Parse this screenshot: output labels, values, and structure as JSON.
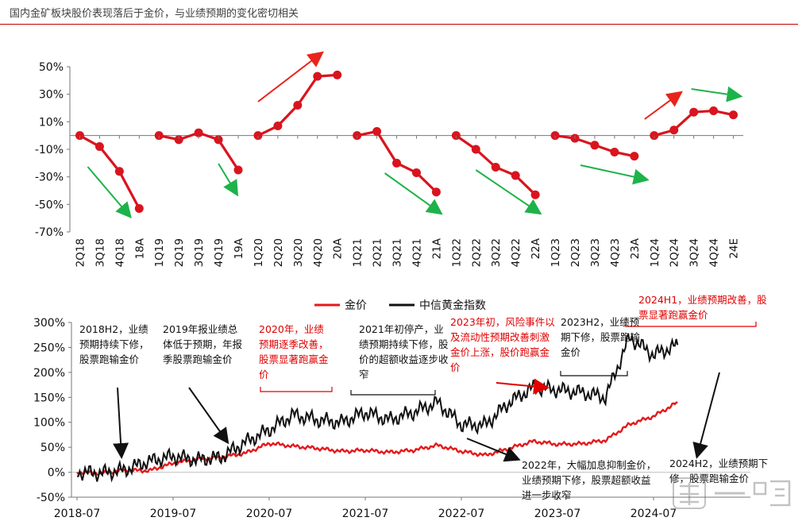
{
  "title": "国内金矿板块股价表现落后于金价，与业绩预期的变化密切相关",
  "colors": {
    "series": "#d9141e",
    "gold_line": "#e31a1c",
    "index_line": "#111111",
    "up_arrow": "#e8241c",
    "down_arrow": "#1db34a",
    "title_rule": "#c00000"
  },
  "chart_data": [
    {
      "type": "line",
      "title": "",
      "ylim": [
        -70,
        50
      ],
      "yticks": [
        "50%",
        "30%",
        "10%",
        "-10%",
        "-30%",
        "-50%",
        "-70%"
      ],
      "categories": [
        "2Q18",
        "3Q18",
        "4Q18",
        "18A",
        "1Q19",
        "2Q19",
        "3Q19",
        "4Q19",
        "19A",
        "1Q20",
        "2Q20",
        "3Q20",
        "4Q20",
        "20A",
        "1Q21",
        "2Q21",
        "3Q21",
        "4Q21",
        "21A",
        "1Q22",
        "2Q22",
        "3Q22",
        "4Q22",
        "22A",
        "1Q23",
        "2Q23",
        "3Q23",
        "4Q23",
        "23A",
        "1Q24",
        "2Q24",
        "3Q24",
        "4Q24",
        "24E"
      ],
      "segments": [
        {
          "year": "2018",
          "x": [
            "2Q18",
            "3Q18",
            "4Q18",
            "18A"
          ],
          "values": [
            0,
            -8,
            -26,
            -53
          ],
          "trend": "down"
        },
        {
          "year": "2019",
          "x": [
            "1Q19",
            "2Q19",
            "3Q19",
            "4Q19",
            "19A"
          ],
          "values": [
            0,
            -3,
            2,
            -3,
            -25
          ],
          "trend": "down"
        },
        {
          "year": "2020",
          "x": [
            "1Q20",
            "2Q20",
            "3Q20",
            "4Q20",
            "20A"
          ],
          "values": [
            0,
            7,
            22,
            43,
            44
          ],
          "trend": "up"
        },
        {
          "year": "2021",
          "x": [
            "1Q21",
            "2Q21",
            "3Q21",
            "4Q21",
            "21A"
          ],
          "values": [
            0,
            3,
            -20,
            -27,
            -41
          ],
          "trend": "down"
        },
        {
          "year": "2022",
          "x": [
            "1Q22",
            "2Q22",
            "3Q22",
            "4Q22",
            "22A"
          ],
          "values": [
            0,
            -10,
            -23,
            -29,
            -43
          ],
          "trend": "down"
        },
        {
          "year": "2023",
          "x": [
            "1Q23",
            "2Q23",
            "3Q23",
            "4Q23",
            "23A"
          ],
          "values": [
            0,
            -2,
            -7,
            -12,
            -15
          ],
          "trend": "down"
        },
        {
          "year": "2024",
          "x": [
            "1Q24",
            "2Q24",
            "3Q24",
            "4Q24",
            "24E"
          ],
          "values": [
            0,
            4,
            17,
            18,
            15
          ],
          "trend": "up_then_down"
        }
      ]
    },
    {
      "type": "line",
      "title": "",
      "legend": [
        "金价",
        "中信黄金指数"
      ],
      "legend_position": "top",
      "ylim": [
        -50,
        300
      ],
      "yticks": [
        "300%",
        "250%",
        "200%",
        "150%",
        "100%",
        "50%",
        "0%",
        "-50%"
      ],
      "xticks": [
        "2018-07",
        "2019-07",
        "2020-07",
        "2021-07",
        "2022-07",
        "2023-07",
        "2024-07"
      ],
      "series": [
        {
          "name": "金价",
          "x": [
            "2018-07",
            "2018-10",
            "2019-01",
            "2019-04",
            "2019-07",
            "2019-10",
            "2020-01",
            "2020-04",
            "2020-07",
            "2020-10",
            "2021-01",
            "2021-04",
            "2021-07",
            "2021-10",
            "2022-01",
            "2022-04",
            "2022-07",
            "2022-10",
            "2023-01",
            "2023-04",
            "2023-07",
            "2023-10",
            "2024-01",
            "2024-04",
            "2024-07",
            "2024-10"
          ],
          "values": [
            0,
            -2,
            4,
            3,
            18,
            26,
            30,
            38,
            58,
            52,
            48,
            42,
            44,
            40,
            44,
            54,
            42,
            34,
            48,
            62,
            56,
            57,
            64,
            96,
            112,
            140
          ]
        },
        {
          "name": "中信黄金指数",
          "x": [
            "2018-07",
            "2018-10",
            "2019-01",
            "2019-04",
            "2019-07",
            "2019-10",
            "2020-01",
            "2020-04",
            "2020-07",
            "2020-10",
            "2021-01",
            "2021-04",
            "2021-07",
            "2021-10",
            "2022-01",
            "2022-04",
            "2022-07",
            "2022-10",
            "2023-01",
            "2023-04",
            "2023-07",
            "2023-10",
            "2024-01",
            "2024-04",
            "2024-07",
            "2024-10"
          ],
          "values": [
            0,
            -2,
            5,
            22,
            32,
            25,
            30,
            60,
            85,
            115,
            105,
            100,
            120,
            105,
            120,
            140,
            95,
            95,
            140,
            170,
            165,
            160,
            150,
            270,
            235,
            255
          ]
        }
      ],
      "annotations": [
        {
          "text": "2018H2，业绩预期持续下修，股票跑输金价",
          "color": "black"
        },
        {
          "text": "2019年报业绩总体低于预期，年报季股票跑输金价",
          "color": "black"
        },
        {
          "text": "2020年，业绩预期逐季改善，股票显著跑赢金价",
          "color": "red"
        },
        {
          "text": "2021年初停产，业绩预期持续下修，股价的超额收益逐步收窄",
          "color": "black"
        },
        {
          "text": "2023年初，风险事件以及流动性预期改善刺激金价上涨，股价跑赢金价",
          "color": "red"
        },
        {
          "text": "2023H2，业绩预期下修，股票跑输金价",
          "color": "black"
        },
        {
          "text": "2024H1，业绩预期改善，股票显著跑赢金价",
          "color": "red"
        },
        {
          "text": "2022年，大幅加息抑制金价，业绩预期下修，股票超额收益进一步收窄",
          "color": "black"
        },
        {
          "text": "2024H2，业绩预期下修，股票跑输金价",
          "color": "black"
        }
      ]
    }
  ],
  "watermark": "郭一鸣"
}
